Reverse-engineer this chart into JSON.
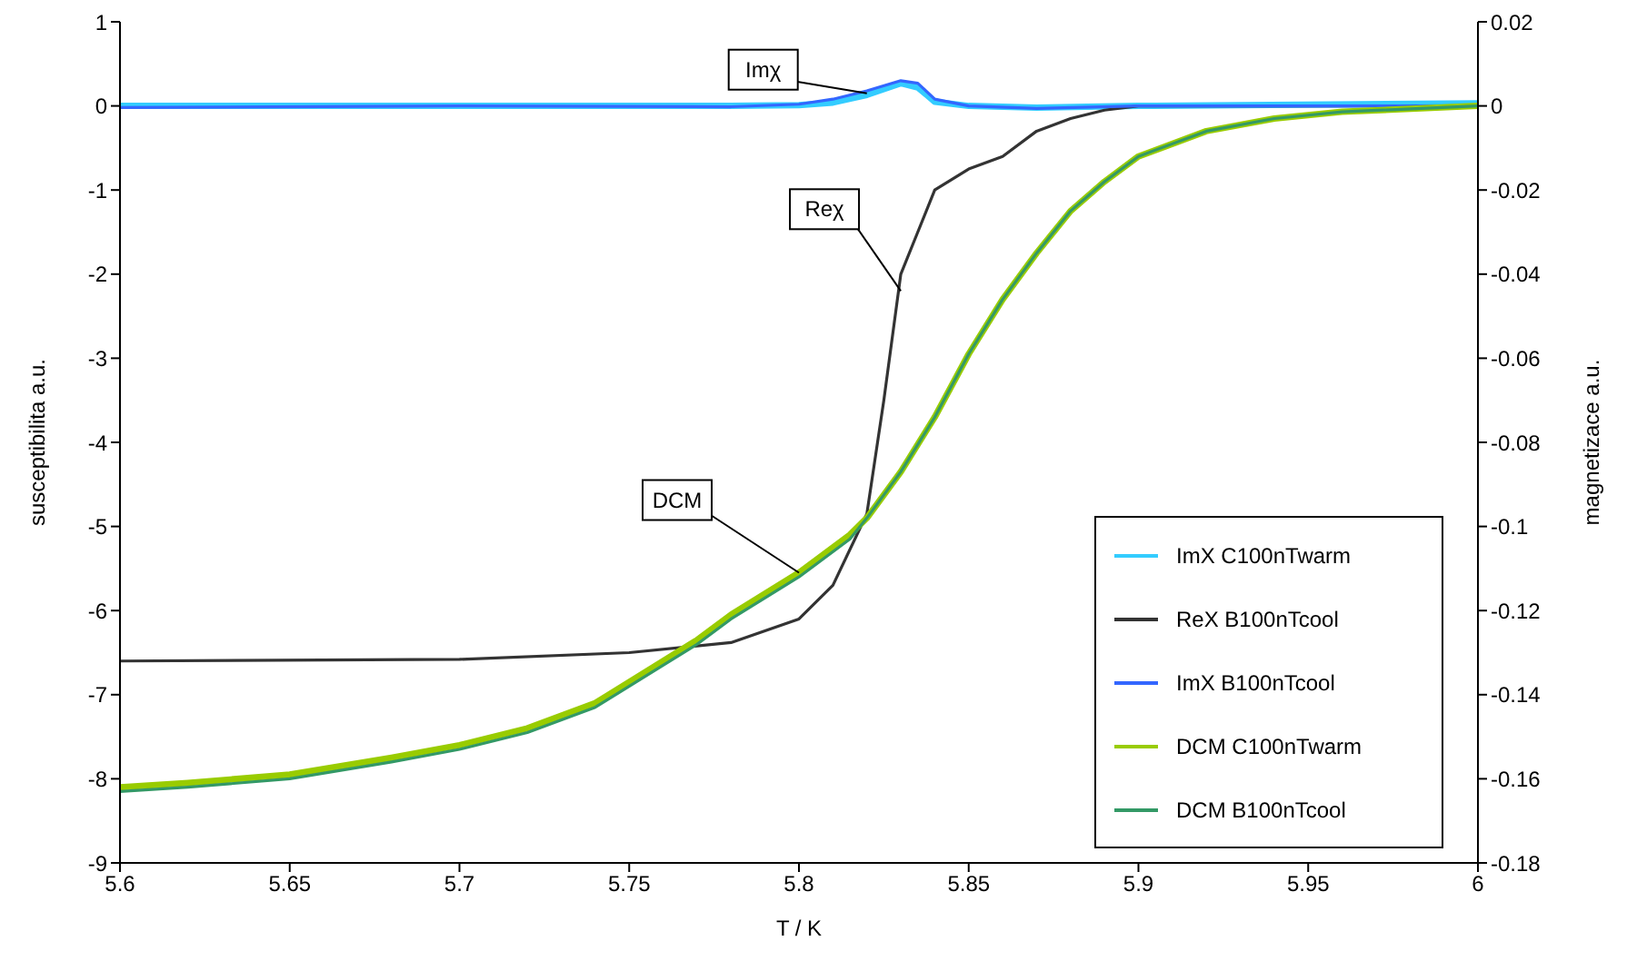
{
  "chart_data": {
    "type": "line",
    "xlabel": "T / K",
    "ylabel": "susceptibilita a.u.",
    "y2label": "magnetizace a.u.",
    "xlim": [
      5.6,
      6
    ],
    "xticks": [
      5.6,
      5.65,
      5.7,
      5.75,
      5.8,
      5.85,
      5.9,
      5.95,
      6
    ],
    "ylim": [
      -9,
      1
    ],
    "yticks": [
      -9,
      -8,
      -7,
      -6,
      -5,
      -4,
      -3,
      -2,
      -1,
      0,
      1
    ],
    "y2lim": [
      -0.18,
      0.02
    ],
    "y2ticks": [
      -0.18,
      -0.16,
      -0.14,
      -0.12,
      -0.1,
      -0.08,
      -0.06,
      -0.04,
      -0.02,
      0,
      0.02
    ],
    "grid": false,
    "legend": "right",
    "marker": "none",
    "annotations": [
      {
        "text": "Imχ",
        "x": 5.82,
        "y": 0.15
      },
      {
        "text": "Reχ",
        "x": 5.83,
        "y": -2.2
      },
      {
        "text": "DCM",
        "x": 5.8,
        "y": -5.55
      }
    ],
    "series": [
      {
        "name": "ImX C100nTwarm",
        "color": "#33ccff",
        "x": [
          5.6,
          5.7,
          5.78,
          5.8,
          5.81,
          5.82,
          5.83,
          5.835,
          5.84,
          5.85,
          5.87,
          5.9,
          6
        ],
        "values": [
          0,
          0,
          0,
          0.01,
          0.04,
          0.13,
          0.27,
          0.22,
          0.05,
          0,
          -0.02,
          0,
          0.03
        ]
      },
      {
        "name": "ReX B100nTcool",
        "color": "#333333",
        "x": [
          5.6,
          5.7,
          5.75,
          5.78,
          5.8,
          5.81,
          5.82,
          5.825,
          5.83,
          5.835,
          5.84,
          5.85,
          5.86,
          5.87,
          5.88,
          5.89,
          5.9,
          6
        ],
        "values": [
          -6.6,
          -6.58,
          -6.5,
          -6.38,
          -6.1,
          -5.7,
          -4.85,
          -3.5,
          -2,
          -1.5,
          -1,
          -0.75,
          -0.6,
          -0.3,
          -0.15,
          -0.05,
          0,
          0
        ]
      },
      {
        "name": "ImX B100nTcool",
        "color": "#3366ff",
        "x": [
          5.6,
          5.7,
          5.78,
          5.8,
          5.81,
          5.82,
          5.83,
          5.835,
          5.84,
          5.85,
          5.87,
          5.9,
          6
        ],
        "values": [
          -0.02,
          0,
          -0.01,
          0.02,
          0.08,
          0.18,
          0.3,
          0.27,
          0.08,
          0,
          -0.03,
          0,
          0
        ]
      },
      {
        "name": "DCM C100nTwarm",
        "color": "#99cc00",
        "axis": "y2",
        "x": [
          5.6,
          5.62,
          5.65,
          5.68,
          5.7,
          5.72,
          5.74,
          5.76,
          5.77,
          5.78,
          5.8,
          5.815,
          5.82,
          5.83,
          5.84,
          5.85,
          5.86,
          5.87,
          5.88,
          5.89,
          5.9,
          5.92,
          5.94,
          5.96,
          6
        ],
        "values": [
          -0.162,
          -0.161,
          -0.159,
          -0.155,
          -0.152,
          -0.148,
          -0.142,
          -0.132,
          -0.127,
          -0.121,
          -0.111,
          -0.102,
          -0.098,
          -0.087,
          -0.074,
          -0.059,
          -0.046,
          -0.035,
          -0.025,
          -0.018,
          -0.012,
          -0.006,
          -0.003,
          -0.0014,
          0
        ]
      },
      {
        "name": "DCM B100nTcool",
        "color": "#339966",
        "axis": "y2",
        "x": [
          5.6,
          5.62,
          5.65,
          5.68,
          5.7,
          5.72,
          5.74,
          5.76,
          5.77,
          5.78,
          5.8,
          5.815,
          5.82,
          5.83,
          5.84,
          5.85,
          5.86,
          5.87,
          5.88,
          5.89,
          5.9,
          5.92,
          5.94,
          5.96,
          6
        ],
        "values": [
          -0.163,
          -0.162,
          -0.16,
          -0.156,
          -0.153,
          -0.149,
          -0.143,
          -0.133,
          -0.128,
          -0.122,
          -0.112,
          -0.103,
          -0.098,
          -0.087,
          -0.074,
          -0.059,
          -0.046,
          -0.035,
          -0.025,
          -0.018,
          -0.012,
          -0.006,
          -0.003,
          -0.0014,
          0
        ]
      }
    ]
  }
}
